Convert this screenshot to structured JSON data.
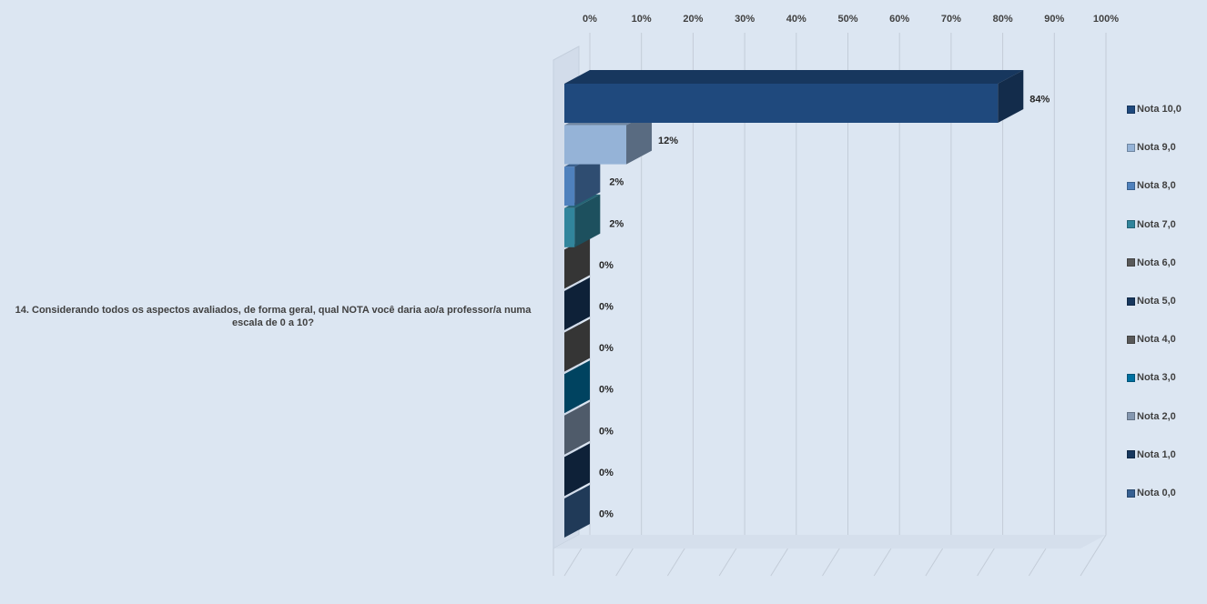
{
  "chart_data": {
    "type": "bar",
    "orientation": "horizontal",
    "three_d": true,
    "categories": [
      "14. Considerando todos os aspectos avaliados, de forma geral, qual NOTA você daria ao/a professor/a numa escala de 0 a 10?"
    ],
    "series": [
      {
        "name": "Nota 10,0",
        "value": 84,
        "label": "84%",
        "color": "#1f497d"
      },
      {
        "name": "Nota 9,0",
        "value": 12,
        "label": "12%",
        "color": "#95b3d7"
      },
      {
        "name": "Nota 8,0",
        "value": 2,
        "label": "2%",
        "color": "#4f81bd"
      },
      {
        "name": "Nota 7,0",
        "value": 2,
        "label": "2%",
        "color": "#31859c"
      },
      {
        "name": "Nota 6,0",
        "value": 0,
        "label": "0%",
        "color": "#595959"
      },
      {
        "name": "Nota 5,0",
        "value": 0,
        "label": "0%",
        "color": "#17375e"
      },
      {
        "name": "Nota 4,0",
        "value": 0,
        "label": "0%",
        "color": "#595959"
      },
      {
        "name": "Nota 3,0",
        "value": 0,
        "label": "0%",
        "color": "#0070a0"
      },
      {
        "name": "Nota 2,0",
        "value": 0,
        "label": "0%",
        "color": "#8497b0"
      },
      {
        "name": "Nota 1,0",
        "value": 0,
        "label": "0%",
        "color": "#17375e"
      },
      {
        "name": "Nota 0,0",
        "value": 0,
        "label": "0%",
        "color": "#366092"
      }
    ],
    "xaxis": {
      "position": "top",
      "ticks": [
        "0%",
        "10%",
        "20%",
        "30%",
        "40%",
        "50%",
        "60%",
        "70%",
        "80%",
        "90%",
        "100%"
      ],
      "range": [
        0,
        100
      ]
    },
    "grid": true,
    "legend": {
      "position": "right"
    }
  }
}
